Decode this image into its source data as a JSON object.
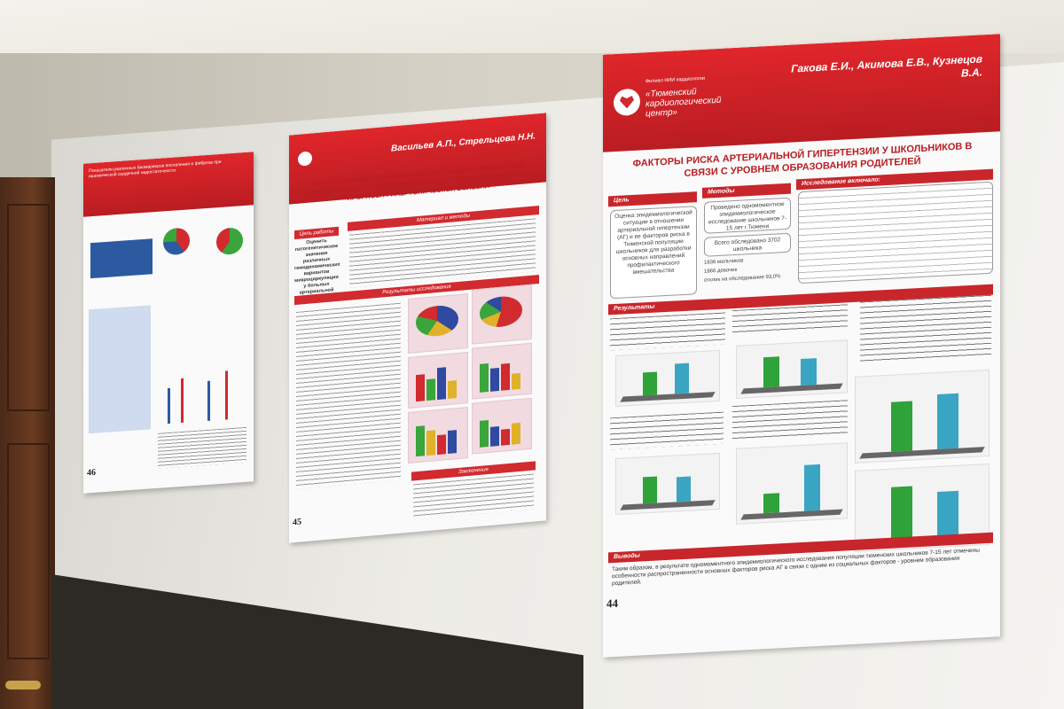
{
  "scene": "corridor wall with three scientific posters",
  "posters": {
    "p46": {
      "number": "46",
      "head": "Показатели различных биомаркеров воспаления и фиброза при ишемической сердечной недостаточности"
    },
    "p45": {
      "number": "45",
      "authors": "Васильев А.П., Стрельцова Н.Н.",
      "title": "ИССЛЕДОВАНИЕ ПЕРИФЕРИЧЕСКОЙ ГЕМОЦИРКУЛЯЦИИ КОЖИ МЕТОДОМ ЛАЗЕРНОЙ ДОППЛЕРОВСКОЙ ФЛОУМЕТРИИ В ОЦЕНКЕ ПРОГНОЗА ГИПЕРТОНИЧЕСКОЙ БОЛЕЗНИ",
      "section_aim": "Цель работы",
      "section_methods": "Материал и методы",
      "section_results": "Результаты исследования",
      "section_conclusion": "Заключение",
      "aim_text": "Оценить патогенетическое значение различных гемодинамических вариантов микроциркуляции у больных артериальной гипертонией (АГ)"
    },
    "p44": {
      "number": "44",
      "org_small": "Филиал НИИ кардиологии",
      "org": "«Тюменский кардиологический центр»",
      "authors": "Гакова Е.И., Акимова Е.В., Кузнецов В.А.",
      "title": "ФАКТОРЫ РИСКА АРТЕРИАЛЬНОЙ ГИПЕРТЕНЗИИ У ШКОЛЬНИКОВ В СВЯЗИ С УРОВНЕМ ОБРАЗОВАНИЯ РОДИТЕЛЕЙ",
      "section_aim": "Цель",
      "section_methods": "Методы",
      "section_included": "Исследование включало:",
      "section_results": "Результаты",
      "section_conclusions": "Выводы",
      "aim_text": "Оценка эпидемиологической ситуации в отношении артериальной гипертензии (АГ) и ее факторов риска в Тюменской популяции школьников для разработки основных направлений профилактического вмешательства",
      "methods_text": "Проведено одномоментное эпидемиологическое исследование школьников 7-15 лет г.Тюмени",
      "sample_total": "Всего обследовано 3702 школьника",
      "sample_boys": "1836 мальчиков",
      "sample_girls": "1866 девочек",
      "response_rate": "отклик на обследование 93,0%",
      "conclusion_text": "Таким образом, в результате одномоментного эпидемиологического исследования популяции тюменских школьников 7-15 лет отмечены особенности распространенности основных факторов риска АГ в связи с одним из социальных факторов - уровнем образования родителей."
    }
  }
}
